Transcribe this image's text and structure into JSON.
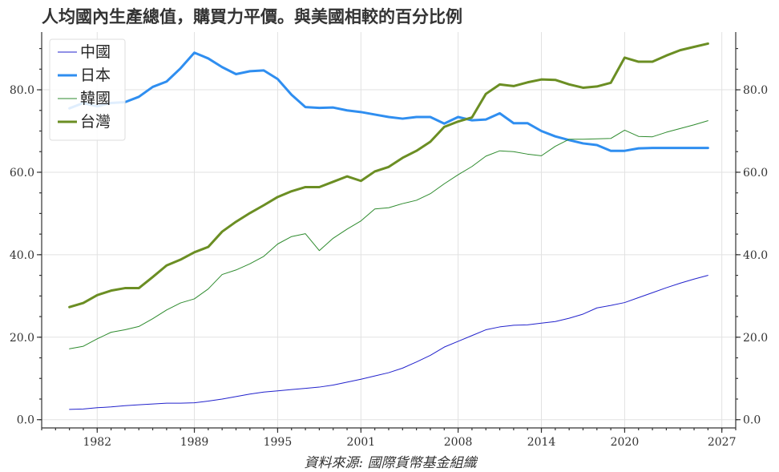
{
  "chart_data": {
    "type": "line",
    "title": "人均國內生產總值，購買力平價。與美國相較的百分比例",
    "source": "資料來源: 國際貨幣基金組織",
    "xlim": [
      1978,
      2028
    ],
    "ylim": [
      -2,
      94
    ],
    "xticks": [
      {
        "value": 1982,
        "label": "1982"
      },
      {
        "value": 1989,
        "label": "1989"
      },
      {
        "value": 1995,
        "label": "1995"
      },
      {
        "value": 2001,
        "label": "2001"
      },
      {
        "value": 2008,
        "label": "2008"
      },
      {
        "value": 2014,
        "label": "2014"
      },
      {
        "value": 2020,
        "label": "2020"
      },
      {
        "value": 2027,
        "label": "2027"
      }
    ],
    "yticks": [
      {
        "value": 0,
        "label": "0.0"
      },
      {
        "value": 20,
        "label": "20.0"
      },
      {
        "value": 40,
        "label": "40.0"
      },
      {
        "value": 60,
        "label": "60.0"
      },
      {
        "value": 80,
        "label": "80.0"
      }
    ],
    "grid": true,
    "legend_position": "top-left",
    "x": [
      1980,
      1981,
      1982,
      1983,
      1984,
      1985,
      1986,
      1987,
      1988,
      1989,
      1990,
      1991,
      1992,
      1993,
      1994,
      1995,
      1996,
      1997,
      1998,
      1999,
      2000,
      2001,
      2002,
      2003,
      2004,
      2005,
      2006,
      2007,
      2008,
      2009,
      2010,
      2011,
      2012,
      2013,
      2014,
      2015,
      2016,
      2017,
      2018,
      2019,
      2020,
      2021,
      2022,
      2023,
      2024,
      2025,
      2026
    ],
    "series": [
      {
        "name": "中國",
        "color": "#2222cc",
        "width": 1,
        "values": [
          2.5,
          2.6,
          2.9,
          3.1,
          3.4,
          3.6,
          3.8,
          4.0,
          4.0,
          4.1,
          4.5,
          5.0,
          5.6,
          6.2,
          6.7,
          7.0,
          7.3,
          7.6,
          7.9,
          8.4,
          9.1,
          9.8,
          10.6,
          11.4,
          12.5,
          14.0,
          15.6,
          17.6,
          19.0,
          20.4,
          21.8,
          22.5,
          22.9,
          23.0,
          23.4,
          23.8,
          24.6,
          25.6,
          27.1,
          27.7,
          28.4,
          29.6,
          30.8,
          32.0,
          33.1,
          34.1,
          35.0
        ]
      },
      {
        "name": "日本",
        "color": "#2f8ef0",
        "width": 3,
        "values": [
          75.5,
          76.8,
          76.0,
          76.8,
          77.0,
          78.3,
          80.7,
          82.0,
          85.2,
          89.0,
          87.6,
          85.5,
          83.8,
          84.5,
          84.7,
          82.6,
          78.8,
          75.8,
          75.6,
          75.7,
          75.0,
          74.6,
          74.0,
          73.4,
          73.0,
          73.4,
          73.4,
          71.8,
          73.4,
          72.6,
          72.8,
          74.3,
          71.9,
          71.9,
          70.0,
          68.7,
          67.8,
          67.0,
          66.6,
          65.2,
          65.2,
          65.8,
          65.9,
          65.9,
          65.9,
          65.9,
          65.9
        ]
      },
      {
        "name": "韓國",
        "color": "#2e8b2e",
        "width": 1,
        "values": [
          17.2,
          17.8,
          19.6,
          21.2,
          21.8,
          22.6,
          24.5,
          26.6,
          28.3,
          29.3,
          31.7,
          35.2,
          36.3,
          37.8,
          39.6,
          42.6,
          44.4,
          45.1,
          41.0,
          44.0,
          46.2,
          48.2,
          51.1,
          51.4,
          52.4,
          53.2,
          54.8,
          57.2,
          59.4,
          61.4,
          63.9,
          65.2,
          65.0,
          64.4,
          64.0,
          66.3,
          68.0,
          68.0,
          68.1,
          68.2,
          70.2,
          68.7,
          68.6,
          69.7,
          70.6,
          71.5,
          72.5
        ]
      },
      {
        "name": "台灣",
        "color": "#6b8e23",
        "width": 3,
        "values": [
          27.3,
          28.3,
          30.2,
          31.3,
          31.9,
          31.9,
          34.6,
          37.4,
          38.8,
          40.6,
          41.9,
          45.6,
          48.0,
          50.1,
          52.0,
          54.0,
          55.4,
          56.4,
          56.4,
          57.7,
          59.0,
          57.9,
          60.2,
          61.3,
          63.5,
          65.2,
          67.4,
          71.0,
          72.3,
          73.3,
          79.0,
          81.3,
          80.9,
          81.8,
          82.5,
          82.4,
          81.3,
          80.5,
          80.8,
          81.7,
          87.8,
          86.8,
          86.8,
          88.3,
          89.6,
          90.4,
          91.2
        ]
      }
    ]
  }
}
